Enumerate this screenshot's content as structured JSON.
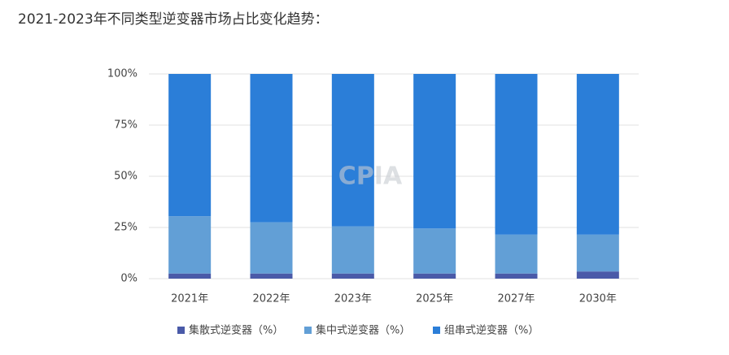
{
  "chart_data": {
    "type": "stacked_bar",
    "title": "2021-2023年不同类型逆变器市场占比变化趋势：",
    "watermark": "CPIA",
    "categories": [
      "2021年",
      "2022年",
      "2023年",
      "2025年",
      "2027年",
      "2030年"
    ],
    "series": [
      {
        "name": "集散式逆变器（%）",
        "color": "#4a5aa8",
        "values": [
          2.5,
          2.5,
          2.5,
          2.5,
          2.5,
          3.5
        ]
      },
      {
        "name": "集中式逆变器（%）",
        "color": "#629fd6",
        "values": [
          28,
          25,
          23,
          22,
          19,
          18
        ]
      },
      {
        "name": "组串式逆变器（%）",
        "color": "#2b7ed8",
        "values": [
          69.5,
          72.5,
          74.5,
          75.5,
          78.5,
          78.5
        ]
      }
    ],
    "ylim": [
      0,
      100
    ],
    "yticks": [
      {
        "value": 0,
        "label": "0%"
      },
      {
        "value": 25,
        "label": "25%"
      },
      {
        "value": 50,
        "label": "50%"
      },
      {
        "value": 75,
        "label": "75%"
      },
      {
        "value": 100,
        "label": "100%"
      }
    ],
    "grid": true
  }
}
